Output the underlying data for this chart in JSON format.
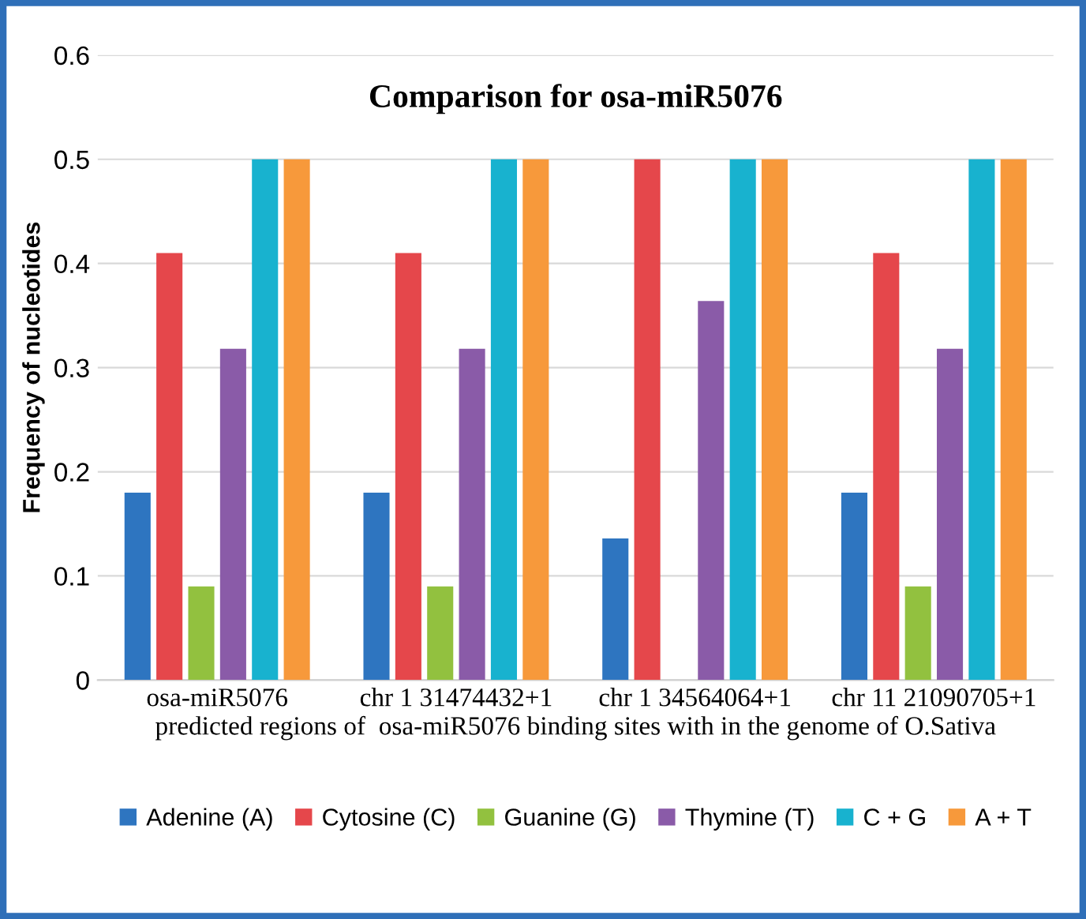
{
  "chart_data": {
    "type": "bar",
    "title": "Comparison for osa-miR5076",
    "xlabel": "predicted regions of  osa-miR5076 binding sites with in the genome of O.Sativa",
    "ylabel": "Frequency of nucleotides",
    "categories": [
      "osa-miR5076",
      "chr 1 31474432+1",
      "chr 1 34564064+1",
      "chr 11 21090705+1"
    ],
    "series": [
      {
        "name": "Adenine (A)",
        "color": "#2e75c0",
        "values": [
          0.18,
          0.18,
          0.136,
          0.18
        ]
      },
      {
        "name": "Cytosine (C)",
        "color": "#e5474b",
        "values": [
          0.41,
          0.41,
          0.5,
          0.41
        ]
      },
      {
        "name": "Guanine (G)",
        "color": "#92c13f",
        "values": [
          0.09,
          0.09,
          0,
          0.09
        ]
      },
      {
        "name": "Thymine (T)",
        "color": "#8a5ba8",
        "values": [
          0.318,
          0.318,
          0.364,
          0.318
        ]
      },
      {
        "name": "C + G",
        "color": "#18b2cf",
        "values": [
          0.5,
          0.5,
          0.5,
          0.5
        ]
      },
      {
        "name": "A + T",
        "color": "#f7993b",
        "values": [
          0.5,
          0.5,
          0.5,
          0.5
        ]
      }
    ],
    "ylim": [
      0,
      0.6
    ],
    "yticks": [
      0,
      0.1,
      0.2,
      0.3,
      0.4,
      0.5,
      0.6
    ],
    "grid": "y",
    "legend": "bottom"
  }
}
